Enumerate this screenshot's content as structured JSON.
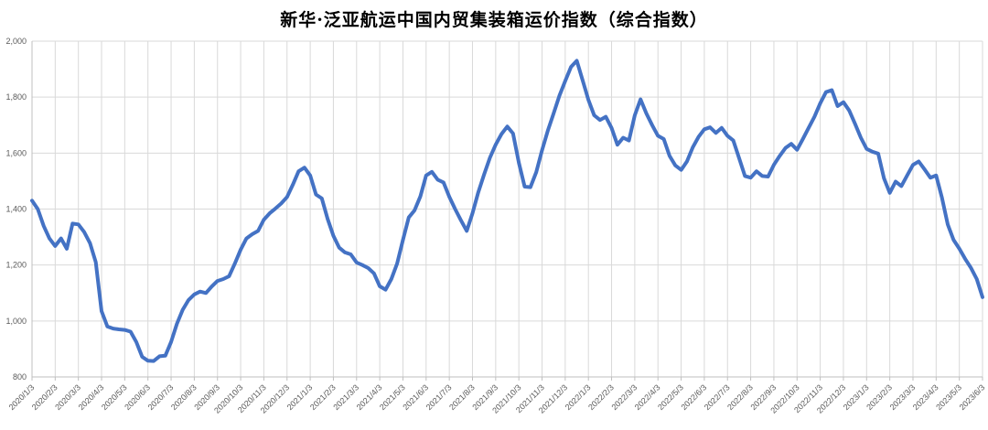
{
  "title": "新华·泛亚航运中国内贸集装箱运价指数（综合指数）",
  "chart_data": {
    "type": "line",
    "title": "新华·泛亚航运中国内贸集装箱运价指数（综合指数）",
    "xlabel": "",
    "ylabel": "",
    "legend": "none",
    "grid": true,
    "ylim": [
      800,
      2000
    ],
    "y_tick_values": [
      800,
      1000,
      1200,
      1400,
      1600,
      1800,
      2000
    ],
    "y_tick_labels": [
      "800",
      "1,000",
      "1,200",
      "1,400",
      "1,600",
      "1,800",
      "2,000"
    ],
    "x_tick_labels": [
      "2020/1/3",
      "2020/2/3",
      "2020/3/3",
      "2020/4/3",
      "2020/5/3",
      "2020/6/3",
      "2020/7/3",
      "2020/8/3",
      "2020/9/3",
      "2020/10/3",
      "2020/11/3",
      "2020/12/3",
      "2021/1/3",
      "2021/2/3",
      "2021/3/3",
      "2021/4/3",
      "2021/5/3",
      "2021/6/3",
      "2021/7/3",
      "2021/8/3",
      "2021/9/3",
      "2021/10/3",
      "2021/11/3",
      "2021/12/3",
      "2022/1/3",
      "2022/2/3",
      "2022/3/3",
      "2022/4/3",
      "2022/5/3",
      "2022/6/3",
      "2022/7/3",
      "2022/8/3",
      "2022/9/3",
      "2022/10/3",
      "2022/11/3",
      "2022/12/3",
      "2023/1/3",
      "2023/2/3",
      "2023/3/3",
      "2023/4/3",
      "2023/5/3",
      "2023/6/3"
    ],
    "x_step_months": 0.25,
    "values": [
      1430,
      1400,
      1340,
      1295,
      1268,
      1295,
      1258,
      1348,
      1345,
      1318,
      1278,
      1210,
      1035,
      980,
      973,
      970,
      968,
      962,
      925,
      872,
      858,
      857,
      874,
      876,
      925,
      990,
      1040,
      1075,
      1095,
      1105,
      1100,
      1123,
      1143,
      1150,
      1160,
      1205,
      1255,
      1295,
      1310,
      1322,
      1362,
      1385,
      1402,
      1420,
      1443,
      1487,
      1535,
      1548,
      1520,
      1452,
      1438,
      1365,
      1305,
      1262,
      1245,
      1238,
      1209,
      1200,
      1189,
      1170,
      1124,
      1112,
      1150,
      1205,
      1290,
      1370,
      1395,
      1445,
      1520,
      1533,
      1505,
      1495,
      1444,
      1400,
      1360,
      1322,
      1385,
      1460,
      1524,
      1583,
      1630,
      1668,
      1695,
      1670,
      1565,
      1480,
      1478,
      1532,
      1610,
      1680,
      1742,
      1805,
      1858,
      1908,
      1930,
      1860,
      1790,
      1735,
      1718,
      1730,
      1690,
      1630,
      1655,
      1645,
      1735,
      1792,
      1742,
      1700,
      1662,
      1650,
      1590,
      1556,
      1540,
      1570,
      1620,
      1658,
      1685,
      1692,
      1672,
      1690,
      1662,
      1645,
      1582,
      1518,
      1512,
      1535,
      1518,
      1516,
      1558,
      1590,
      1618,
      1633,
      1612,
      1650,
      1690,
      1730,
      1778,
      1818,
      1825,
      1768,
      1782,
      1752,
      1705,
      1655,
      1615,
      1605,
      1598,
      1510,
      1458,
      1498,
      1482,
      1520,
      1558,
      1570,
      1542,
      1512,
      1520,
      1440,
      1345,
      1290,
      1258,
      1222,
      1190,
      1150,
      1085
    ],
    "line_color": "#4472C4",
    "line_width": 4,
    "gridline_color": "#D9D9D9",
    "axis_color": "#BFBFBF",
    "tick_label_color": "#595959",
    "background_color": "#FFFFFF"
  }
}
